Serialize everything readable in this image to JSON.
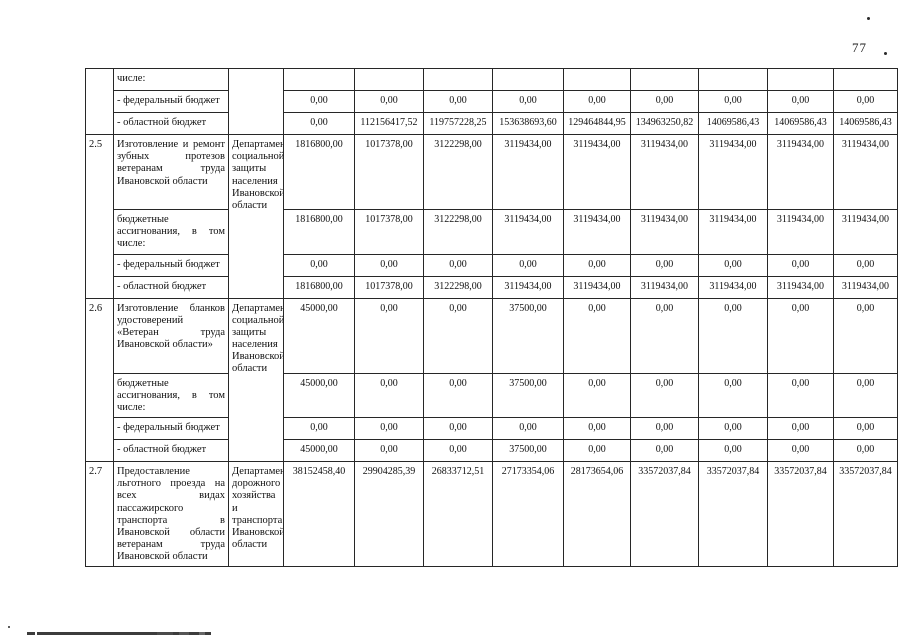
{
  "page": {
    "number": "77"
  },
  "table": {
    "groups": [
      {
        "num": "",
        "dept": "",
        "rows": [
          {
            "label": "числе:",
            "values": [
              "",
              "",
              "",
              "",
              "",
              "",
              "",
              "",
              ""
            ]
          },
          {
            "label": "- федеральный бюджет",
            "values": [
              "0,00",
              "0,00",
              "0,00",
              "0,00",
              "0,00",
              "0,00",
              "0,00",
              "0,00",
              "0,00"
            ]
          },
          {
            "label": "- областной бюджет",
            "values": [
              "0,00",
              "112156417,52",
              "119757228,25",
              "153638693,60",
              "129464844,95",
              "134963250,82",
              "14069586,43",
              "14069586,43",
              "14069586,43"
            ]
          }
        ]
      },
      {
        "num": "2.5",
        "dept": "Департамент социальной защиты населения Ивановской области",
        "rows": [
          {
            "label": "Изготовление и ремонт зубных протезов ветеранам труда Ивановской области",
            "values": [
              "1816800,00",
              "1017378,00",
              "3122298,00",
              "3119434,00",
              "3119434,00",
              "3119434,00",
              "3119434,00",
              "3119434,00",
              "3119434,00"
            ]
          },
          {
            "label": "бюджетные ассигнования, в том числе:",
            "values": [
              "1816800,00",
              "1017378,00",
              "3122298,00",
              "3119434,00",
              "3119434,00",
              "3119434,00",
              "3119434,00",
              "3119434,00",
              "3119434,00"
            ]
          },
          {
            "label": "- федеральный бюджет",
            "values": [
              "0,00",
              "0,00",
              "0,00",
              "0,00",
              "0,00",
              "0,00",
              "0,00",
              "0,00",
              "0,00"
            ]
          },
          {
            "label": "- областной бюджет",
            "values": [
              "1816800,00",
              "1017378,00",
              "3122298,00",
              "3119434,00",
              "3119434,00",
              "3119434,00",
              "3119434,00",
              "3119434,00",
              "3119434,00"
            ]
          }
        ]
      },
      {
        "num": "2.6",
        "dept": "Департамент социальной защиты населения Ивановской области",
        "rows": [
          {
            "label": "Изготовление бланков удостоверений «Ветеран труда Ивановской области»",
            "values": [
              "45000,00",
              "0,00",
              "0,00",
              "37500,00",
              "0,00",
              "0,00",
              "0,00",
              "0,00",
              "0,00"
            ]
          },
          {
            "label": "бюджетные ассигнования, в том числе:",
            "values": [
              "45000,00",
              "0,00",
              "0,00",
              "37500,00",
              "0,00",
              "0,00",
              "0,00",
              "0,00",
              "0,00"
            ]
          },
          {
            "label": "- федеральный бюджет",
            "values": [
              "0,00",
              "0,00",
              "0,00",
              "0,00",
              "0,00",
              "0,00",
              "0,00",
              "0,00",
              "0,00"
            ]
          },
          {
            "label": "- областной бюджет",
            "values": [
              "45000,00",
              "0,00",
              "0,00",
              "37500,00",
              "0,00",
              "0,00",
              "0,00",
              "0,00",
              "0,00"
            ]
          }
        ]
      },
      {
        "num": "2.7",
        "dept": "Департамент дорожного хозяйства и транспорта Ивановской области",
        "rows": [
          {
            "label": "Предоставление льготного проезда на всех видах пассажирского транспорта в Ивановской области ветеранам труда Ивановской области",
            "values": [
              "38152458,40",
              "29904285,39",
              "26833712,51",
              "27173354,06",
              "28173654,06",
              "33572037,84",
              "33572037,84",
              "33572037,84",
              "33572037,84"
            ]
          }
        ]
      }
    ]
  }
}
